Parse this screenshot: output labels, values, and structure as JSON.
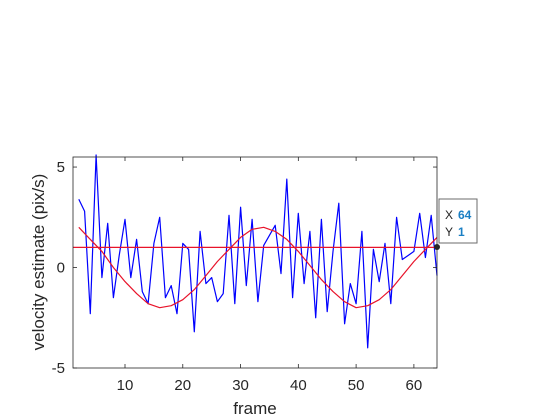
{
  "chart_data": {
    "type": "line",
    "title": "",
    "xlabel": "frame",
    "ylabel": "velocity estimate (pix/s)",
    "xlim": [
      1,
      64
    ],
    "ylim": [
      -5,
      5.5
    ],
    "x_ticks": [
      10,
      20,
      30,
      40,
      50,
      60
    ],
    "y_ticks": [
      -5,
      0,
      5
    ],
    "grid": false,
    "legend": "none",
    "series": [
      {
        "style": "noisy",
        "color": "#0000ff",
        "x": [
          2,
          3,
          4,
          5,
          6,
          7,
          8,
          9,
          10,
          11,
          12,
          13,
          14,
          15,
          16,
          17,
          18,
          19,
          20,
          21,
          22,
          23,
          24,
          25,
          26,
          27,
          28,
          29,
          30,
          31,
          32,
          33,
          34,
          35,
          36,
          37,
          38,
          39,
          40,
          41,
          42,
          43,
          44,
          45,
          46,
          47,
          48,
          49,
          50,
          51,
          52,
          53,
          54,
          55,
          56,
          57,
          58,
          59,
          60,
          61,
          62,
          63,
          64
        ],
        "y": [
          3.4,
          2.8,
          -2.3,
          5.6,
          -0.5,
          2.2,
          -1.5,
          0.6,
          2.4,
          -0.5,
          1.4,
          -1.2,
          -1.8,
          1.2,
          2.5,
          -1.5,
          -0.9,
          -2.3,
          1.2,
          0.9,
          -3.2,
          1.8,
          -0.8,
          -0.5,
          -1.7,
          -1.3,
          2.6,
          -1.8,
          3.0,
          -0.9,
          2.4,
          -1.7,
          1.1,
          1.6,
          2.1,
          -0.3,
          4.4,
          -1.5,
          2.7,
          -0.8,
          1.8,
          -2.5,
          2.4,
          -2.2,
          0.8,
          3.2,
          -2.8,
          -0.8,
          -1.8,
          1.8,
          -4.0,
          0.9,
          -0.7,
          1.2,
          -1.8,
          2.5,
          0.4,
          0.6,
          0.8,
          2.7,
          0.5,
          2.6,
          -0.4
        ]
      },
      {
        "style": "sinusoid",
        "color": "#e8132a",
        "x": [
          2,
          4,
          6,
          8,
          10,
          12,
          14,
          16,
          18,
          20,
          22,
          24,
          26,
          28,
          30,
          32,
          34,
          36,
          38,
          40,
          42,
          44,
          46,
          48,
          50,
          52,
          54,
          56,
          58,
          60,
          62,
          64
        ],
        "y": [
          2.0,
          1.4,
          0.8,
          0.0,
          -0.7,
          -1.3,
          -1.8,
          -2.0,
          -1.9,
          -1.6,
          -1.1,
          -0.4,
          0.3,
          0.9,
          1.5,
          1.9,
          2.0,
          1.8,
          1.4,
          0.8,
          0.1,
          -0.6,
          -1.2,
          -1.7,
          -2.0,
          -1.9,
          -1.6,
          -1.1,
          -0.4,
          0.3,
          0.9,
          1.5
        ]
      },
      {
        "style": "flat",
        "color": "#e8132a",
        "x": [
          1,
          64
        ],
        "y": [
          1,
          1
        ]
      }
    ],
    "datatip": {
      "x_label": "X",
      "x_value": "64",
      "y_label": "Y",
      "y_value": "1",
      "value_color": "#1a7fc4"
    }
  }
}
